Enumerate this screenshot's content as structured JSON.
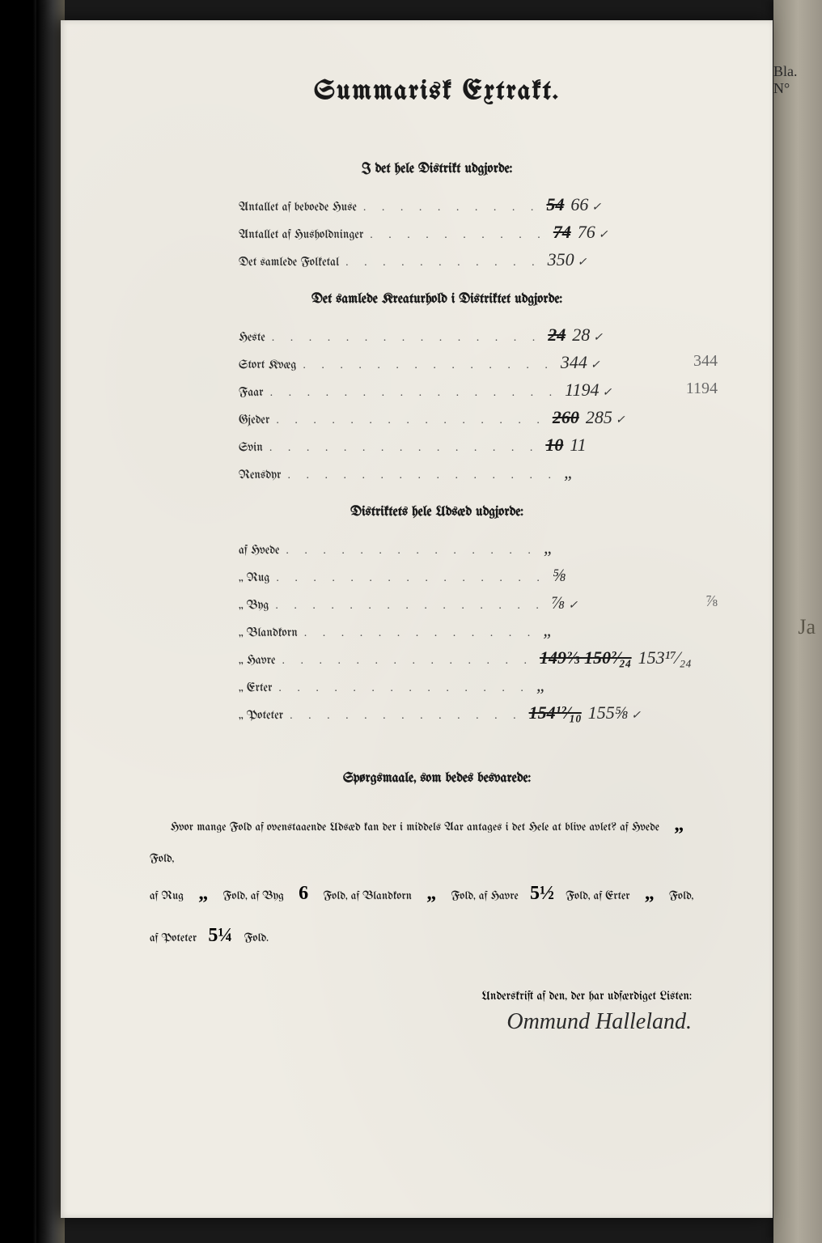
{
  "title": "Summarisk Extrakt.",
  "section1": {
    "heading": "I det hele Distrikt udgjorde:",
    "rows": [
      {
        "label": "Antallet af beboede Huse",
        "dots": ". . . . . . . . . .",
        "struck": "54",
        "corrected": "66",
        "check": "✓"
      },
      {
        "label": "Antallet af Husholdninger",
        "dots": ". . . . . . . . . .",
        "struck": "74",
        "corrected": "76",
        "check": "✓"
      },
      {
        "label": "Det samlede Folketal",
        "dots": ". . . . . . . . . . .",
        "struck": "",
        "corrected": "350",
        "check": "✓"
      }
    ]
  },
  "section2": {
    "heading": "Det samlede Kreaturhold i Distriktet udgjorde:",
    "rows": [
      {
        "label": "Heste",
        "dots": ". . . . . . . . . . . . . . .",
        "struck": "24",
        "corrected": "28",
        "check": "✓"
      },
      {
        "label": "Stort Kvæg",
        "dots": ". . . . . . . . . . . . . .",
        "struck": "",
        "corrected": "344",
        "check": "✓",
        "margin": "344"
      },
      {
        "label": "Faar",
        "dots": ". . . . . . . . . . . . . . . .",
        "struck": "",
        "corrected": "1194",
        "check": "✓",
        "margin": "1194"
      },
      {
        "label": "Gjeder",
        "dots": ". . . . . . . . . . . . . . .",
        "struck": "260",
        "corrected": "285",
        "check": "✓"
      },
      {
        "label": "Svin",
        "dots": ". . . . . . . . . . . . . . .",
        "struck": "10",
        "corrected": "11",
        "check": ""
      },
      {
        "label": "Rensdyr",
        "dots": ". . . . . . . . . . . . . . .",
        "struck": "",
        "corrected": "„",
        "check": ""
      }
    ]
  },
  "section3": {
    "heading": "Distriktets hele Udsæd udgjorde:",
    "rows": [
      {
        "label": "af Hvede",
        "dots": ". . . . . . . . . . . . . .",
        "struck": "",
        "corrected": "„",
        "check": ""
      },
      {
        "label": "„ Rug",
        "dots": ". . . . . . . . . . . . . . .",
        "struck": "",
        "corrected": "⅝",
        "check": ""
      },
      {
        "label": "„ Byg",
        "dots": ". . . . . . . . . . . . . . .",
        "struck": "",
        "corrected": "⅞",
        "check": "✓",
        "margin": "⅞"
      },
      {
        "label": "„ Blandkorn",
        "dots": ". . . . . . . . . . . . .",
        "struck": "",
        "corrected": "„",
        "check": ""
      },
      {
        "label": "„ Havre",
        "dots": ". . . . . . . . . . . . . .",
        "struck": "149⅔  150²⁄₂₄",
        "corrected": "153¹⁷⁄₂₄",
        "check": "",
        "margin": ""
      },
      {
        "label": "„ Erter",
        "dots": ". . . . . . . . . . . . . .",
        "struck": "",
        "corrected": "„",
        "check": ""
      },
      {
        "label": "„ Poteter",
        "dots": ". . . . . . . . . . . . .",
        "struck": "154¹²⁄₁₀",
        "corrected": "155⅝",
        "check": "✓"
      }
    ]
  },
  "section4": {
    "heading": "Spørgsmaale, som bedes besvarede:",
    "text_parts": {
      "p1a": "Hvor mange Fold af ovenstaaende Udsæd kan der i middels Aar antages i det Hele at blive avlet?  af Hvede",
      "p1b": "Fold,",
      "p2a": "af Rug",
      "p2b": "Fold, af Byg",
      "p2c": "Fold, af Blandkorn",
      "p2d": "Fold, af Havre",
      "p2e": "Fold, af Erter",
      "p2f": "Fold,",
      "p3a": "af Poteter",
      "p3b": "Fold."
    },
    "values": {
      "hvede": "„",
      "rug": "„",
      "byg": "6",
      "blandkorn": "„",
      "havre": "5½",
      "erter": "„",
      "poteter": "5¼"
    }
  },
  "signature_label": "Underskrift af den, der har udfærdiget Listen:",
  "signature": "Ommund Halleland.",
  "topright": "Bla. N°",
  "rightmargin": "Ja"
}
